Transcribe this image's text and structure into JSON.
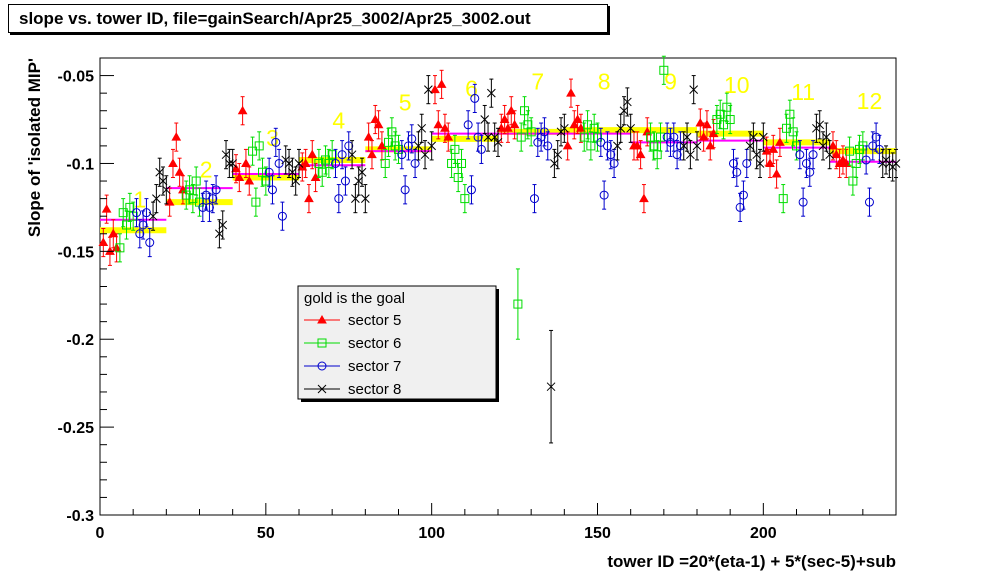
{
  "title": "slope vs. tower ID, file=gainSearch/Apr25_3002/Apr25_3002.out",
  "colors": {
    "sector5": "#ff0000",
    "sector6": "#00dd00",
    "sector7": "#0000cc",
    "sector8": "#000000",
    "goal_gold": "#ffff00",
    "goal_magenta": "#ff00ff",
    "sector_label": "#ffff00"
  },
  "chart_data": {
    "type": "scatter",
    "xlabel": "tower ID =20*(eta-1) + 5*(sec-5)+sub",
    "ylabel": "Slope of 'isolated MIP'",
    "xlim": [
      0,
      240
    ],
    "ylim": [
      -0.3,
      -0.04
    ],
    "x_ticks": [
      0,
      50,
      100,
      150,
      200
    ],
    "x_tick_labels": [
      "0",
      "50",
      "100",
      "150",
      "200"
    ],
    "y_ticks": [
      -0.05,
      -0.1,
      -0.15,
      -0.2,
      -0.25,
      -0.3
    ],
    "y_tick_labels": [
      "-0.05",
      "-0.1",
      "-0.15",
      "-0.2",
      "-0.25",
      "-0.3"
    ],
    "grid": false,
    "legend": {
      "title": "gold is the goal",
      "placement": "center",
      "entries": [
        "sector 5",
        "sector 6",
        "sector 7",
        "sector 8"
      ]
    },
    "sector_labels": [
      {
        "text": "1",
        "x": 12,
        "y": -0.125
      },
      {
        "text": "2",
        "x": 32,
        "y": -0.108
      },
      {
        "text": "3",
        "x": 52,
        "y": -0.09
      },
      {
        "text": "4",
        "x": 72,
        "y": -0.08
      },
      {
        "text": "5",
        "x": 92,
        "y": -0.07
      },
      {
        "text": "6",
        "x": 112,
        "y": -0.062
      },
      {
        "text": "7",
        "x": 132,
        "y": -0.058
      },
      {
        "text": "8",
        "x": 152,
        "y": -0.058
      },
      {
        "text": "9",
        "x": 172,
        "y": -0.058
      },
      {
        "text": "10",
        "x": 192,
        "y": -0.06
      },
      {
        "text": "11",
        "x": 212,
        "y": -0.064
      },
      {
        "text": "12",
        "x": 232,
        "y": -0.069
      }
    ],
    "goal_gold": [
      {
        "x": [
          0,
          20
        ],
        "y": -0.138
      },
      {
        "x": [
          20,
          40
        ],
        "y": -0.122
      },
      {
        "x": [
          40,
          60
        ],
        "y": -0.108
      },
      {
        "x": [
          60,
          80
        ],
        "y": -0.098
      },
      {
        "x": [
          80,
          100
        ],
        "y": -0.092
      },
      {
        "x": [
          100,
          120
        ],
        "y": -0.086
      },
      {
        "x": [
          120,
          140
        ],
        "y": -0.082
      },
      {
        "x": [
          140,
          160
        ],
        "y": -0.081
      },
      {
        "x": [
          160,
          180
        ],
        "y": -0.081
      },
      {
        "x": [
          180,
          200
        ],
        "y": -0.083
      },
      {
        "x": [
          200,
          220
        ],
        "y": -0.088
      },
      {
        "x": [
          220,
          240
        ],
        "y": -0.093
      }
    ],
    "goal_magenta": [
      {
        "x": [
          0,
          20
        ],
        "y": -0.132
      },
      {
        "x": [
          20,
          40
        ],
        "y": -0.114
      },
      {
        "x": [
          40,
          60
        ],
        "y": -0.106
      },
      {
        "x": [
          60,
          80
        ],
        "y": -0.101
      },
      {
        "x": [
          80,
          100
        ],
        "y": -0.093
      },
      {
        "x": [
          100,
          120
        ],
        "y": -0.083
      },
      {
        "x": [
          120,
          140
        ],
        "y": -0.083
      },
      {
        "x": [
          140,
          160
        ],
        "y": -0.083
      },
      {
        "x": [
          160,
          180
        ],
        "y": -0.088
      },
      {
        "x": [
          180,
          200
        ],
        "y": -0.087
      },
      {
        "x": [
          200,
          220
        ],
        "y": -0.091
      },
      {
        "x": [
          220,
          240
        ],
        "y": -0.099
      }
    ],
    "series": [
      {
        "name": "sector 5",
        "marker": "triangle",
        "x": [
          1,
          2,
          3,
          4,
          5,
          21,
          22,
          23,
          24,
          25,
          41,
          42,
          43,
          44,
          45,
          61,
          62,
          63,
          64,
          65,
          81,
          82,
          83,
          84,
          85,
          101,
          102,
          103,
          104,
          105,
          121,
          122,
          123,
          124,
          125,
          141,
          142,
          143,
          144,
          145,
          161,
          162,
          163,
          164,
          165,
          181,
          182,
          183,
          184,
          185,
          201,
          202,
          203,
          204,
          205,
          221,
          222,
          223,
          224,
          225
        ],
        "y": [
          -0.145,
          -0.126,
          -0.15,
          -0.14,
          -0.148,
          -0.122,
          -0.1,
          -0.085,
          -0.105,
          -0.115,
          -0.103,
          -0.108,
          -0.07,
          -0.1,
          -0.11,
          -0.102,
          -0.1,
          -0.12,
          -0.095,
          -0.108,
          -0.085,
          -0.095,
          -0.075,
          -0.078,
          -0.09,
          -0.058,
          -0.078,
          -0.055,
          -0.08,
          -0.085,
          -0.08,
          -0.075,
          -0.08,
          -0.07,
          -0.078,
          -0.09,
          -0.06,
          -0.078,
          -0.075,
          -0.08,
          -0.09,
          -0.09,
          -0.095,
          -0.12,
          -0.082,
          -0.077,
          -0.085,
          -0.078,
          -0.09,
          -0.083,
          -0.093,
          -0.1,
          -0.092,
          -0.106,
          -0.088,
          -0.09,
          -0.095,
          -0.1,
          -0.098,
          -0.1
        ],
        "err": [
          0.008,
          0.008,
          0.008,
          0.008,
          0.008,
          0.008,
          0.008,
          0.008,
          0.008,
          0.008,
          0.008,
          0.008,
          0.008,
          0.008,
          0.008,
          0.008,
          0.008,
          0.008,
          0.008,
          0.008,
          0.008,
          0.008,
          0.008,
          0.008,
          0.008,
          0.008,
          0.008,
          0.008,
          0.008,
          0.008,
          0.008,
          0.008,
          0.008,
          0.008,
          0.008,
          0.008,
          0.008,
          0.008,
          0.008,
          0.008,
          0.008,
          0.008,
          0.008,
          0.008,
          0.008,
          0.008,
          0.008,
          0.008,
          0.008,
          0.008,
          0.008,
          0.008,
          0.008,
          0.008,
          0.008,
          0.008,
          0.008,
          0.008,
          0.008,
          0.008
        ]
      },
      {
        "name": "sector 6",
        "marker": "open-square",
        "x": [
          6,
          7,
          8,
          9,
          10,
          26,
          27,
          28,
          29,
          30,
          46,
          47,
          48,
          49,
          50,
          66,
          67,
          68,
          69,
          70,
          86,
          87,
          88,
          89,
          90,
          106,
          107,
          108,
          109,
          110,
          126,
          127,
          128,
          129,
          130,
          146,
          147,
          148,
          149,
          150,
          166,
          167,
          168,
          169,
          170,
          186,
          187,
          188,
          189,
          190,
          206,
          207,
          208,
          209,
          210,
          226,
          227,
          228,
          229,
          230
        ],
        "y": [
          -0.148,
          -0.128,
          -0.135,
          -0.125,
          -0.13,
          -0.118,
          -0.115,
          -0.12,
          -0.11,
          -0.122,
          -0.093,
          -0.122,
          -0.09,
          -0.105,
          -0.11,
          -0.1,
          -0.105,
          -0.098,
          -0.1,
          -0.095,
          -0.1,
          -0.088,
          -0.082,
          -0.09,
          -0.092,
          -0.1,
          -0.092,
          -0.108,
          -0.1,
          -0.12,
          -0.18,
          -0.085,
          -0.07,
          -0.078,
          -0.082,
          -0.085,
          -0.078,
          -0.09,
          -0.08,
          -0.085,
          -0.085,
          -0.09,
          -0.095,
          -0.085,
          -0.047,
          -0.075,
          -0.072,
          -0.078,
          -0.068,
          -0.075,
          -0.12,
          -0.08,
          -0.072,
          -0.082,
          -0.09,
          -0.093,
          -0.11,
          -0.1,
          -0.092,
          -0.09
        ],
        "err": [
          0.008,
          0.008,
          0.008,
          0.008,
          0.008,
          0.008,
          0.008,
          0.008,
          0.008,
          0.008,
          0.008,
          0.008,
          0.008,
          0.008,
          0.008,
          0.008,
          0.008,
          0.008,
          0.008,
          0.008,
          0.008,
          0.008,
          0.008,
          0.008,
          0.008,
          0.008,
          0.008,
          0.008,
          0.008,
          0.008,
          0.02,
          0.008,
          0.008,
          0.008,
          0.008,
          0.008,
          0.008,
          0.008,
          0.008,
          0.008,
          0.008,
          0.008,
          0.008,
          0.008,
          0.008,
          0.008,
          0.008,
          0.008,
          0.008,
          0.008,
          0.008,
          0.008,
          0.008,
          0.008,
          0.008,
          0.008,
          0.008,
          0.008,
          0.008,
          0.008
        ]
      },
      {
        "name": "sector 7",
        "marker": "open-circle",
        "x": [
          11,
          12,
          13,
          14,
          15,
          31,
          32,
          33,
          34,
          35,
          51,
          52,
          53,
          54,
          55,
          71,
          72,
          73,
          74,
          75,
          91,
          92,
          93,
          94,
          95,
          111,
          112,
          113,
          114,
          115,
          131,
          132,
          133,
          134,
          135,
          151,
          152,
          153,
          154,
          155,
          171,
          172,
          173,
          174,
          175,
          191,
          192,
          193,
          194,
          195,
          211,
          212,
          213,
          214,
          215,
          231,
          232,
          233,
          234,
          235
        ],
        "y": [
          -0.128,
          -0.14,
          -0.135,
          -0.128,
          -0.145,
          -0.125,
          -0.118,
          -0.125,
          -0.12,
          -0.115,
          -0.105,
          -0.115,
          -0.088,
          -0.1,
          -0.13,
          -0.1,
          -0.12,
          -0.095,
          -0.11,
          -0.09,
          -0.095,
          -0.115,
          -0.09,
          -0.086,
          -0.1,
          -0.078,
          -0.115,
          -0.063,
          -0.085,
          -0.092,
          -0.12,
          -0.088,
          -0.085,
          -0.082,
          -0.09,
          -0.088,
          -0.118,
          -0.09,
          -0.095,
          -0.1,
          -0.085,
          -0.088,
          -0.085,
          -0.095,
          -0.09,
          -0.1,
          -0.105,
          -0.125,
          -0.118,
          -0.1,
          -0.095,
          -0.122,
          -0.1,
          -0.105,
          -0.095,
          -0.098,
          -0.122,
          -0.09,
          -0.085,
          -0.092
        ],
        "err": [
          0.008,
          0.008,
          0.008,
          0.008,
          0.008,
          0.008,
          0.008,
          0.008,
          0.008,
          0.008,
          0.008,
          0.008,
          0.008,
          0.008,
          0.008,
          0.008,
          0.008,
          0.008,
          0.008,
          0.008,
          0.008,
          0.008,
          0.008,
          0.008,
          0.008,
          0.008,
          0.008,
          0.008,
          0.008,
          0.008,
          0.008,
          0.008,
          0.008,
          0.008,
          0.008,
          0.008,
          0.008,
          0.008,
          0.008,
          0.008,
          0.008,
          0.008,
          0.008,
          0.008,
          0.008,
          0.008,
          0.008,
          0.008,
          0.008,
          0.008,
          0.008,
          0.008,
          0.008,
          0.008,
          0.008,
          0.008,
          0.008,
          0.008,
          0.008,
          0.008
        ]
      },
      {
        "name": "sector 8",
        "marker": "cross",
        "x": [
          16,
          17,
          18,
          19,
          20,
          36,
          37,
          38,
          39,
          40,
          56,
          57,
          58,
          59,
          60,
          76,
          77,
          78,
          79,
          80,
          96,
          97,
          98,
          99,
          100,
          116,
          117,
          118,
          119,
          120,
          136,
          137,
          138,
          139,
          140,
          156,
          157,
          158,
          159,
          160,
          176,
          177,
          178,
          179,
          180,
          196,
          197,
          198,
          199,
          200,
          216,
          217,
          218,
          219,
          220,
          236,
          237,
          238,
          239,
          240
        ],
        "y": [
          -0.13,
          -0.12,
          -0.105,
          -0.11,
          -0.115,
          -0.14,
          -0.135,
          -0.095,
          -0.1,
          -0.1,
          -0.098,
          -0.1,
          -0.105,
          -0.11,
          -0.1,
          -0.095,
          -0.12,
          -0.11,
          -0.105,
          -0.12,
          -0.09,
          -0.08,
          -0.095,
          -0.058,
          -0.09,
          -0.075,
          -0.085,
          -0.06,
          -0.085,
          -0.088,
          -0.227,
          -0.1,
          -0.095,
          -0.082,
          -0.08,
          -0.09,
          -0.08,
          -0.07,
          -0.065,
          -0.08,
          -0.09,
          -0.085,
          -0.095,
          -0.058,
          -0.09,
          -0.09,
          -0.085,
          -0.095,
          -0.1,
          -0.085,
          -0.08,
          -0.078,
          -0.09,
          -0.085,
          -0.095,
          -0.1,
          -0.098,
          -0.1,
          -0.102,
          -0.1
        ],
        "err": [
          0.008,
          0.008,
          0.008,
          0.008,
          0.008,
          0.008,
          0.008,
          0.008,
          0.008,
          0.008,
          0.008,
          0.008,
          0.008,
          0.008,
          0.008,
          0.008,
          0.008,
          0.008,
          0.008,
          0.008,
          0.008,
          0.008,
          0.008,
          0.008,
          0.008,
          0.008,
          0.008,
          0.008,
          0.008,
          0.008,
          0.032,
          0.008,
          0.008,
          0.008,
          0.008,
          0.008,
          0.008,
          0.008,
          0.008,
          0.008,
          0.008,
          0.008,
          0.008,
          0.008,
          0.008,
          0.008,
          0.008,
          0.008,
          0.008,
          0.008,
          0.008,
          0.008,
          0.008,
          0.008,
          0.008,
          0.008,
          0.008,
          0.008,
          0.008,
          0.008
        ]
      }
    ]
  }
}
